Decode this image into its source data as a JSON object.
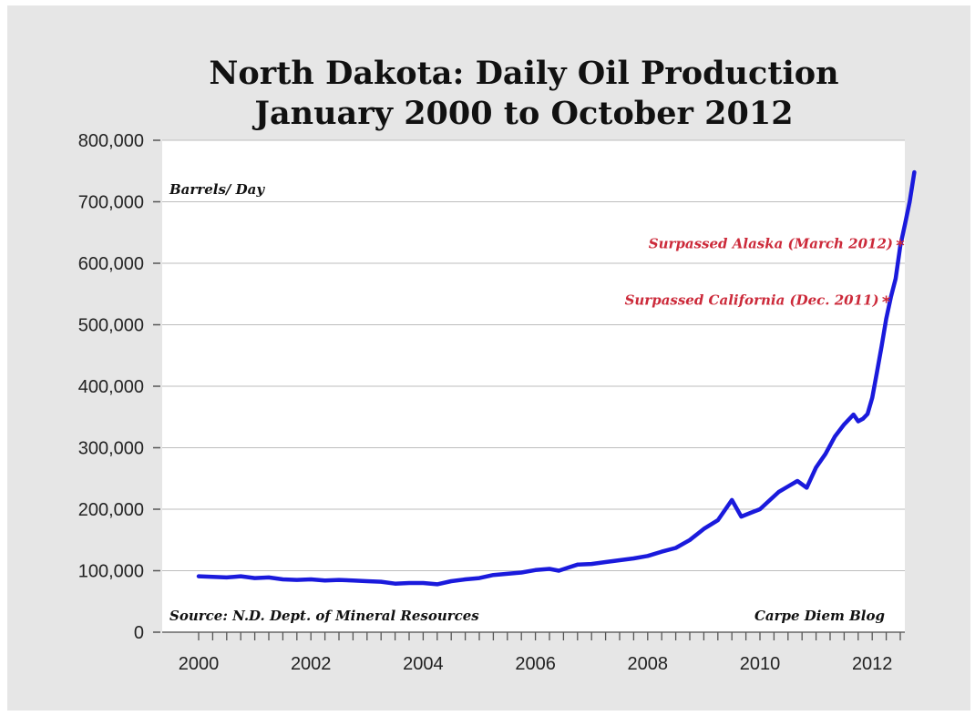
{
  "chart_data": {
    "type": "line",
    "title_line1": "North Dakota: Daily Oil Production",
    "title_line2": "January 2000 to October 2012",
    "ylabel": "Barrels/ Day",
    "source": "Source: N.D. Dept. of Mineral Resources",
    "credit": "Carpe Diem Blog",
    "ylim": [
      0,
      800000
    ],
    "xlim": [
      2000.0,
      2012.9
    ],
    "y_ticks": [
      {
        "value": 0,
        "label": "0"
      },
      {
        "value": 100000,
        "label": "100,000"
      },
      {
        "value": 200000,
        "label": "200,000"
      },
      {
        "value": 300000,
        "label": "300,000"
      },
      {
        "value": 400000,
        "label": "400,000"
      },
      {
        "value": 500000,
        "label": "500,000"
      },
      {
        "value": 600000,
        "label": "600,000"
      },
      {
        "value": 700000,
        "label": "700,000"
      },
      {
        "value": 800000,
        "label": "800,000"
      }
    ],
    "x_ticks": [
      {
        "value": 2000,
        "label": "2000"
      },
      {
        "value": 2002,
        "label": "2002"
      },
      {
        "value": 2004,
        "label": "2004"
      },
      {
        "value": 2006,
        "label": "2006"
      },
      {
        "value": 2008,
        "label": "2008"
      },
      {
        "value": 2010,
        "label": "2010"
      },
      {
        "value": 2012,
        "label": "2012"
      }
    ],
    "grid": true,
    "series": [
      {
        "color": "#1a1adc",
        "points": [
          {
            "x": "2000-01",
            "y": 91000
          },
          {
            "x": "2000-04",
            "y": 90000
          },
          {
            "x": "2000-07",
            "y": 89000
          },
          {
            "x": "2000-10",
            "y": 91000
          },
          {
            "x": "2001-01",
            "y": 88000
          },
          {
            "x": "2001-04",
            "y": 89000
          },
          {
            "x": "2001-07",
            "y": 86000
          },
          {
            "x": "2001-10",
            "y": 85000
          },
          {
            "x": "2002-01",
            "y": 86000
          },
          {
            "x": "2002-04",
            "y": 84000
          },
          {
            "x": "2002-07",
            "y": 85000
          },
          {
            "x": "2002-10",
            "y": 84000
          },
          {
            "x": "2003-01",
            "y": 83000
          },
          {
            "x": "2003-04",
            "y": 82000
          },
          {
            "x": "2003-07",
            "y": 79000
          },
          {
            "x": "2003-10",
            "y": 80000
          },
          {
            "x": "2004-01",
            "y": 80000
          },
          {
            "x": "2004-04",
            "y": 78000
          },
          {
            "x": "2004-07",
            "y": 83000
          },
          {
            "x": "2004-10",
            "y": 86000
          },
          {
            "x": "2005-01",
            "y": 88000
          },
          {
            "x": "2005-04",
            "y": 93000
          },
          {
            "x": "2005-07",
            "y": 95000
          },
          {
            "x": "2005-10",
            "y": 97000
          },
          {
            "x": "2006-01",
            "y": 101000
          },
          {
            "x": "2006-04",
            "y": 103000
          },
          {
            "x": "2006-06",
            "y": 100000
          },
          {
            "x": "2006-08",
            "y": 105000
          },
          {
            "x": "2006-10",
            "y": 110000
          },
          {
            "x": "2007-01",
            "y": 111000
          },
          {
            "x": "2007-04",
            "y": 114000
          },
          {
            "x": "2007-07",
            "y": 117000
          },
          {
            "x": "2007-10",
            "y": 120000
          },
          {
            "x": "2008-01",
            "y": 124000
          },
          {
            "x": "2008-04",
            "y": 131000
          },
          {
            "x": "2008-07",
            "y": 137000
          },
          {
            "x": "2008-10",
            "y": 150000
          },
          {
            "x": "2009-01",
            "y": 168000
          },
          {
            "x": "2009-04",
            "y": 182000
          },
          {
            "x": "2009-07",
            "y": 215000
          },
          {
            "x": "2009-09",
            "y": 188000
          },
          {
            "x": "2009-11",
            "y": 194000
          },
          {
            "x": "2010-01",
            "y": 200000
          },
          {
            "x": "2010-03",
            "y": 214000
          },
          {
            "x": "2010-05",
            "y": 228000
          },
          {
            "x": "2010-07",
            "y": 237000
          },
          {
            "x": "2010-09",
            "y": 246000
          },
          {
            "x": "2010-11",
            "y": 235000
          },
          {
            "x": "2011-01",
            "y": 268000
          },
          {
            "x": "2011-03",
            "y": 290000
          },
          {
            "x": "2011-05",
            "y": 318000
          },
          {
            "x": "2011-07",
            "y": 338000
          },
          {
            "x": "2011-09",
            "y": 354000
          },
          {
            "x": "2011-10",
            "y": 343000
          },
          {
            "x": "2011-11",
            "y": 347000
          },
          {
            "x": "2011-12",
            "y": 355000
          },
          {
            "x": "2012-01",
            "y": 381000
          },
          {
            "x": "2012-02",
            "y": 422000
          },
          {
            "x": "2012-03",
            "y": 465000
          },
          {
            "x": "2012-04",
            "y": 510000
          },
          {
            "x": "2012-05",
            "y": 545000
          },
          {
            "x": "2012-06",
            "y": 575000
          },
          {
            "x": "2012-07",
            "y": 628000
          },
          {
            "x": "2012-08",
            "y": 663000
          },
          {
            "x": "2012-09",
            "y": 700000
          },
          {
            "x": "2012-10",
            "y": 748000
          }
        ]
      }
    ],
    "annotations": [
      {
        "text": "Surpassed California (Dec. 2011)",
        "marker_x": "2012-04",
        "marker_y": 540000,
        "color": "#cc2a3a"
      },
      {
        "text": "Surpassed Alaska (March 2012)",
        "marker_x": "2012-07",
        "marker_y": 632000,
        "color": "#cc2a3a"
      }
    ]
  }
}
